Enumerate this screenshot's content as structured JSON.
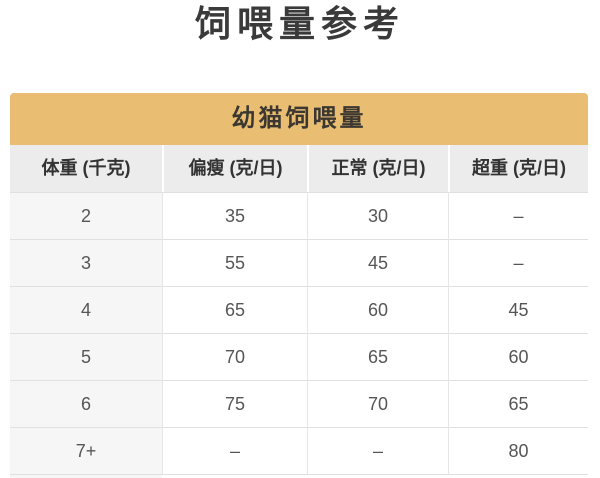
{
  "page_title": "饲喂量参考",
  "table": {
    "caption": "幼猫饲喂量",
    "columns": [
      "体重 (千克)",
      "偏瘦 (克/日)",
      "正常 (克/日)",
      "超重 (克/日)"
    ],
    "rows": [
      [
        "2",
        "35",
        "30",
        "–"
      ],
      [
        "3",
        "55",
        "45",
        "–"
      ],
      [
        "4",
        "65",
        "60",
        "45"
      ],
      [
        "5",
        "70",
        "65",
        "60"
      ],
      [
        "6",
        "75",
        "70",
        "65"
      ],
      [
        "7+",
        "–",
        "–",
        "80"
      ]
    ]
  },
  "colors": {
    "caption_bg": "#e9be72",
    "caption_text": "#3c3831",
    "header_bg": "#ececec",
    "header_text": "#333333",
    "first_col_bg": "#f6f6f6",
    "data_text": "#565656",
    "border": "#e0e0e0",
    "title_text": "#3a3a3a",
    "page_bg": "#ffffff"
  }
}
